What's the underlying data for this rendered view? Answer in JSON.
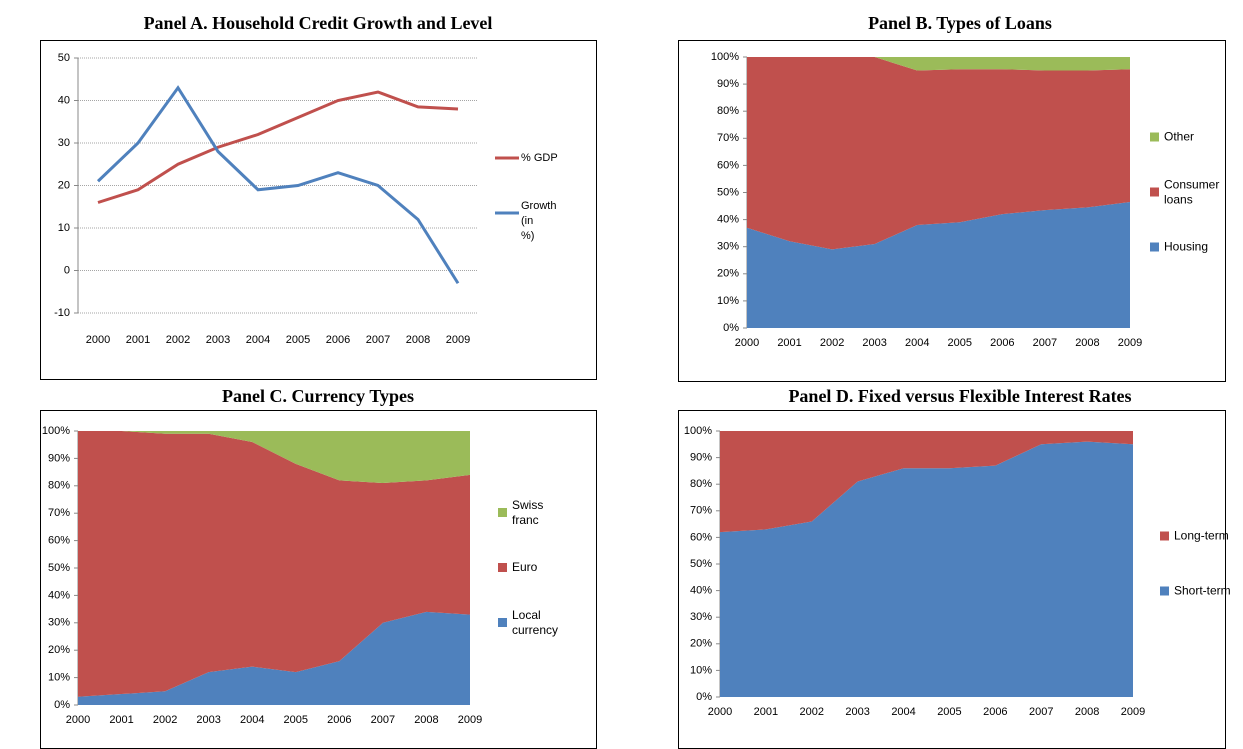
{
  "chart_data": [
    {
      "type": "line",
      "title": "Panel A. Household Credit Growth and Level",
      "categories": [
        "2000",
        "2001",
        "2002",
        "2003",
        "2004",
        "2005",
        "2006",
        "2007",
        "2008",
        "2009"
      ],
      "series": [
        {
          "name": "% GDP",
          "color": "#c0504d",
          "values": [
            16,
            19,
            25,
            29,
            32,
            36,
            40,
            42,
            38.5,
            38
          ]
        },
        {
          "name": "Growth (in %)",
          "color": "#4f81bd",
          "values": [
            21,
            30,
            43,
            28,
            19,
            20,
            23,
            20,
            12,
            -3
          ]
        }
      ],
      "ylim": [
        -10,
        50
      ],
      "yticks": [
        -10,
        0,
        10,
        20,
        30,
        40,
        50
      ],
      "grid": true,
      "legend": "right"
    },
    {
      "type": "stacked_area",
      "title": "Panel B. Types of Loans",
      "categories": [
        "2000",
        "2001",
        "2002",
        "2003",
        "2004",
        "2005",
        "2006",
        "2007",
        "2008",
        "2009"
      ],
      "series": [
        {
          "name": "Housing",
          "color": "#4f81bd",
          "values": [
            37,
            32,
            29,
            31,
            38,
            39,
            42,
            43.5,
            44.5,
            46.5
          ]
        },
        {
          "name": "Consumer loans",
          "color": "#c0504d",
          "values": [
            63,
            68,
            71,
            69,
            57,
            56.5,
            53.5,
            51.5,
            50.5,
            49
          ]
        },
        {
          "name": "Other",
          "color": "#9bbb59",
          "values": [
            0,
            0,
            0,
            0,
            5,
            4.5,
            4.5,
            5,
            5,
            4.5
          ]
        }
      ],
      "ylim": [
        0,
        100
      ],
      "yticks": [
        {
          "value": 0,
          "label": "0%"
        },
        {
          "value": 10,
          "label": "10%"
        },
        {
          "value": 20,
          "label": "20%"
        },
        {
          "value": 30,
          "label": "30%"
        },
        {
          "value": 40,
          "label": "40%"
        },
        {
          "value": 50,
          "label": "50%"
        },
        {
          "value": 60,
          "label": "60%"
        },
        {
          "value": 70,
          "label": "70%"
        },
        {
          "value": 80,
          "label": "80%"
        },
        {
          "value": 90,
          "label": "90%"
        },
        {
          "value": 100,
          "label": "100%"
        }
      ],
      "grid": false,
      "legend": "right"
    },
    {
      "type": "stacked_area",
      "title": "Panel C. Currency Types",
      "categories": [
        "2000",
        "2001",
        "2002",
        "2003",
        "2004",
        "2005",
        "2006",
        "2007",
        "2008",
        "2009"
      ],
      "series": [
        {
          "name": "Local currency",
          "color": "#4f81bd",
          "values": [
            3,
            4,
            5,
            12,
            14,
            12,
            16,
            30,
            34,
            33
          ]
        },
        {
          "name": "Euro",
          "color": "#c0504d",
          "values": [
            97,
            96,
            94,
            87,
            82,
            76,
            66,
            51,
            48,
            51
          ]
        },
        {
          "name": "Swiss franc",
          "color": "#9bbb59",
          "values": [
            0,
            0,
            1,
            1,
            4,
            12,
            18,
            19,
            18,
            16
          ]
        }
      ],
      "ylim": [
        0,
        100
      ],
      "yticks": [
        {
          "value": 0,
          "label": "0%"
        },
        {
          "value": 10,
          "label": "10%"
        },
        {
          "value": 20,
          "label": "20%"
        },
        {
          "value": 30,
          "label": "30%"
        },
        {
          "value": 40,
          "label": "40%"
        },
        {
          "value": 50,
          "label": "50%"
        },
        {
          "value": 60,
          "label": "60%"
        },
        {
          "value": 70,
          "label": "70%"
        },
        {
          "value": 80,
          "label": "80%"
        },
        {
          "value": 90,
          "label": "90%"
        },
        {
          "value": 100,
          "label": "100%"
        }
      ],
      "grid": false,
      "legend": "right"
    },
    {
      "type": "stacked_area",
      "title": "Panel D. Fixed versus Flexible Interest Rates",
      "categories": [
        "2000",
        "2001",
        "2002",
        "2003",
        "2004",
        "2005",
        "2006",
        "2007",
        "2008",
        "2009"
      ],
      "series": [
        {
          "name": "Short-term",
          "color": "#4f81bd",
          "values": [
            62,
            63,
            66,
            81,
            86,
            86,
            87,
            95,
            96,
            95
          ]
        },
        {
          "name": "Long-term",
          "color": "#c0504d",
          "values": [
            38,
            37,
            34,
            19,
            14,
            14,
            13,
            5,
            4,
            5
          ]
        }
      ],
      "ylim": [
        0,
        100
      ],
      "yticks": [
        {
          "value": 0,
          "label": "0%"
        },
        {
          "value": 10,
          "label": "10%"
        },
        {
          "value": 20,
          "label": "20%"
        },
        {
          "value": 30,
          "label": "30%"
        },
        {
          "value": 40,
          "label": "40%"
        },
        {
          "value": 50,
          "label": "50%"
        },
        {
          "value": 60,
          "label": "60%"
        },
        {
          "value": 70,
          "label": "70%"
        },
        {
          "value": 80,
          "label": "80%"
        },
        {
          "value": 90,
          "label": "90%"
        },
        {
          "value": 100,
          "label": "100%"
        }
      ],
      "grid": false,
      "legend": "right"
    }
  ]
}
